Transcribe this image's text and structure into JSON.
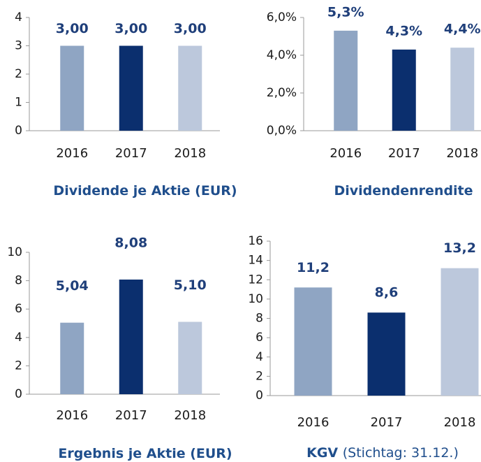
{
  "chart_data": [
    {
      "type": "bar",
      "title": "Dividende je Aktie (EUR)",
      "categories": [
        "2016",
        "2017",
        "2018"
      ],
      "values": [
        3,
        3,
        3
      ],
      "value_labels": [
        "3,00",
        "3,00",
        "3,00"
      ],
      "colors": [
        "#8fa5c3",
        "#0b2f6e",
        "#bcc8dc"
      ],
      "ylim": [
        0,
        4
      ],
      "yticks": [
        0,
        1,
        2,
        3,
        4
      ],
      "grid": false
    },
    {
      "type": "bar",
      "title": "Dividendenrendite",
      "categories": [
        "2016",
        "2017",
        "2018"
      ],
      "values": [
        5.3,
        4.3,
        4.4
      ],
      "value_labels": [
        "5,3%",
        "4,3%",
        "4,4%"
      ],
      "colors": [
        "#8fa5c3",
        "#0b2f6e",
        "#bcc8dc"
      ],
      "ylim": [
        0,
        6
      ],
      "yticks": [
        {
          "value": 0,
          "label": "0,0%"
        },
        {
          "value": 2,
          "label": "2,0%"
        },
        {
          "value": 4,
          "label": "4,0%"
        },
        {
          "value": 6,
          "label": "6,0%"
        }
      ],
      "grid": false
    },
    {
      "type": "bar",
      "title": "Ergebnis je Aktie (EUR)",
      "categories": [
        "2016",
        "2017",
        "2018"
      ],
      "values": [
        5.04,
        8.08,
        5.1
      ],
      "value_labels": [
        "5,04",
        "8,08",
        "5,10"
      ],
      "colors": [
        "#8fa5c3",
        "#0b2f6e",
        "#bcc8dc"
      ],
      "ylim": [
        0,
        10
      ],
      "yticks": [
        0,
        2,
        4,
        6,
        8,
        10
      ],
      "grid": false
    },
    {
      "type": "bar",
      "title": "KGV",
      "subtitle": "(Stichtag: 31.12.)",
      "categories": [
        "2016",
        "2017",
        "2018"
      ],
      "values": [
        11.2,
        8.6,
        13.2
      ],
      "value_labels": [
        "11,2",
        "8,6",
        "13,2"
      ],
      "colors": [
        "#8fa5c3",
        "#0b2f6e",
        "#bcc8dc"
      ],
      "ylim": [
        0,
        16
      ],
      "yticks": [
        0,
        2,
        4,
        6,
        8,
        10,
        12,
        14,
        16
      ],
      "grid": false
    }
  ]
}
